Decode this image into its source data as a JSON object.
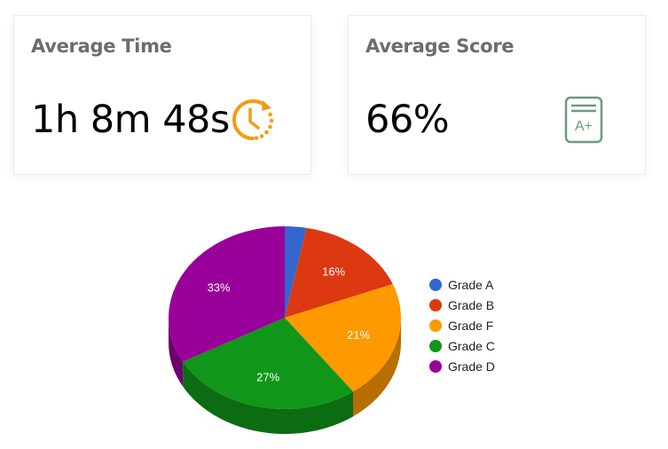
{
  "cards": {
    "time": {
      "title": "Average Time",
      "value": "1h 8m 48s",
      "icon": "clock-refresh-icon",
      "icon_color": "#f39c12"
    },
    "score": {
      "title": "Average Score",
      "value": "66%",
      "icon": "grade-a-plus-icon",
      "icon_color": "#6a9c78",
      "icon_text": "A+"
    }
  },
  "chart_data": {
    "type": "pie",
    "style": "3d",
    "categories": [
      "Grade A",
      "Grade B",
      "Grade F",
      "Grade C",
      "Grade D"
    ],
    "values": [
      3,
      16,
      21,
      27,
      33
    ],
    "labels": [
      "",
      "16%",
      "21%",
      "27%",
      "33%"
    ],
    "colors": [
      "#3366cc",
      "#dc3912",
      "#ff9900",
      "#109618",
      "#990099"
    ],
    "legend_position": "right",
    "title": ""
  }
}
